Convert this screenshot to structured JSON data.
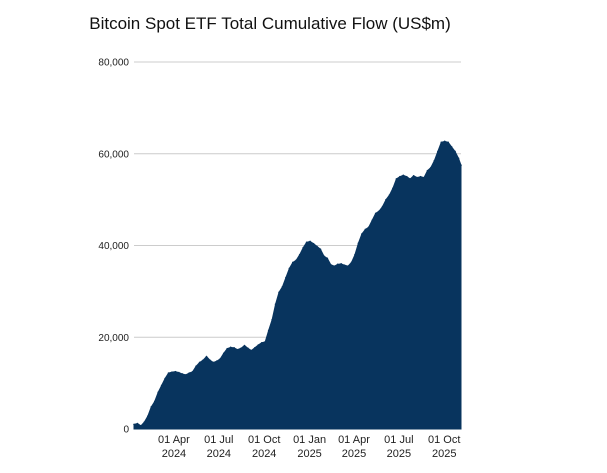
{
  "chart_data": {
    "type": "area",
    "title": "Bitcoin Spot ETF Total Cumulative Flow (US$m)",
    "xlabel": "",
    "ylabel": "",
    "ylim": [
      0,
      80000
    ],
    "yticks": [
      {
        "value": 0,
        "label": "0"
      },
      {
        "value": 20000,
        "label": "20,000"
      },
      {
        "value": 40000,
        "label": "40,000"
      },
      {
        "value": 60000,
        "label": "60,000"
      },
      {
        "value": 80000,
        "label": "80,000"
      }
    ],
    "xlim": [
      "2024-01-11",
      "2025-11-04"
    ],
    "xticks": [
      {
        "date": "2024-04-01",
        "line1": "01 Apr",
        "line2": "2024"
      },
      {
        "date": "2024-07-01",
        "line1": "01 Jul",
        "line2": "2024"
      },
      {
        "date": "2024-10-01",
        "line1": "01 Oct",
        "line2": "2024"
      },
      {
        "date": "2025-01-01",
        "line1": "01 Jan",
        "line2": "2025"
      },
      {
        "date": "2025-04-01",
        "line1": "01 Apr",
        "line2": "2025"
      },
      {
        "date": "2025-07-01",
        "line1": "01 Jul",
        "line2": "2025"
      },
      {
        "date": "2025-10-01",
        "line1": "01 Oct",
        "line2": "2025"
      }
    ],
    "grid": true,
    "legend": "none",
    "color": "#08345e",
    "x": [
      "2024-01-11",
      "2024-01-18",
      "2024-01-25",
      "2024-02-01",
      "2024-02-08",
      "2024-02-15",
      "2024-02-22",
      "2024-02-29",
      "2024-03-07",
      "2024-03-14",
      "2024-03-21",
      "2024-03-28",
      "2024-04-04",
      "2024-04-11",
      "2024-04-18",
      "2024-04-25",
      "2024-05-02",
      "2024-05-09",
      "2024-05-16",
      "2024-05-23",
      "2024-05-30",
      "2024-06-06",
      "2024-06-13",
      "2024-06-20",
      "2024-06-27",
      "2024-07-04",
      "2024-07-11",
      "2024-07-18",
      "2024-07-25",
      "2024-08-01",
      "2024-08-08",
      "2024-08-15",
      "2024-08-22",
      "2024-08-29",
      "2024-09-05",
      "2024-09-12",
      "2024-09-19",
      "2024-09-26",
      "2024-10-03",
      "2024-10-10",
      "2024-10-17",
      "2024-10-24",
      "2024-10-31",
      "2024-11-07",
      "2024-11-14",
      "2024-11-21",
      "2024-11-28",
      "2024-12-05",
      "2024-12-12",
      "2024-12-19",
      "2024-12-26",
      "2025-01-02",
      "2025-01-09",
      "2025-01-16",
      "2025-01-23",
      "2025-01-30",
      "2025-02-06",
      "2025-02-13",
      "2025-02-20",
      "2025-02-27",
      "2025-03-06",
      "2025-03-13",
      "2025-03-20",
      "2025-03-27",
      "2025-04-03",
      "2025-04-10",
      "2025-04-17",
      "2025-04-24",
      "2025-05-01",
      "2025-05-08",
      "2025-05-15",
      "2025-05-22",
      "2025-05-29",
      "2025-06-05",
      "2025-06-12",
      "2025-06-19",
      "2025-06-26",
      "2025-07-03",
      "2025-07-10",
      "2025-07-17",
      "2025-07-24",
      "2025-07-31",
      "2025-08-07",
      "2025-08-14",
      "2025-08-21",
      "2025-08-28",
      "2025-09-04",
      "2025-09-11",
      "2025-09-18",
      "2025-09-25",
      "2025-10-02",
      "2025-10-09",
      "2025-10-16",
      "2025-10-23",
      "2025-10-30",
      "2025-11-04"
    ],
    "y": [
      1000,
      1200,
      700,
      1500,
      2800,
      4800,
      6000,
      8000,
      9500,
      11000,
      12200,
      12400,
      12500,
      12300,
      12000,
      11800,
      12200,
      12500,
      13700,
      14500,
      15000,
      15800,
      15000,
      14500,
      14800,
      15300,
      16500,
      17500,
      17800,
      17700,
      17300,
      17600,
      18200,
      17600,
      17100,
      17700,
      18300,
      18800,
      19000,
      21500,
      23800,
      27200,
      29800,
      31000,
      33000,
      35000,
      36300,
      36800,
      38000,
      39500,
      40700,
      40900,
      40400,
      39800,
      39200,
      37700,
      37200,
      35800,
      35500,
      35900,
      36000,
      35700,
      35500,
      36300,
      38000,
      40500,
      42500,
      43500,
      44000,
      45500,
      47000,
      47500,
      48500,
      50000,
      51000,
      52500,
      54500,
      55000,
      55300,
      55000,
      54500,
      55200,
      54800,
      55000,
      54800,
      56300,
      57000,
      58500,
      60500,
      62500,
      62700,
      62500,
      61500,
      60500,
      59000,
      57500
    ]
  }
}
